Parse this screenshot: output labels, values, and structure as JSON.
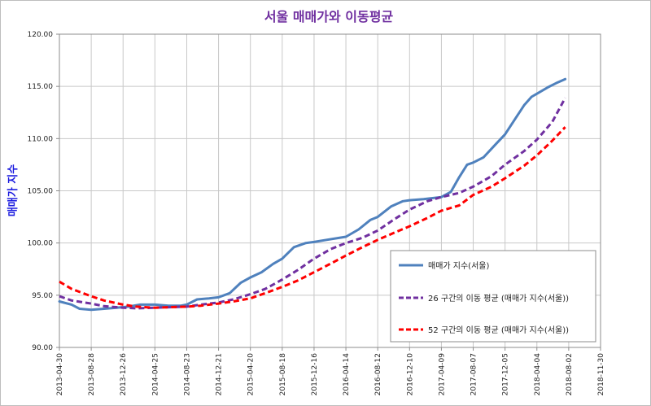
{
  "chart_data": {
    "type": "line",
    "title": "서울 매매가와 이동평균",
    "ylabel": "매매가 지수",
    "xlabel": "",
    "ylim": [
      90,
      120
    ],
    "yticks": [
      90,
      95,
      100,
      105,
      110,
      115,
      120
    ],
    "ytick_labels": [
      "90.00",
      "95.00",
      "100.00",
      "105.00",
      "110.00",
      "115.00",
      "120.00"
    ],
    "xlim": [
      "2013-04-30",
      "2018-11-30"
    ],
    "xtick_labels": [
      "2013-04-30",
      "2013-08-28",
      "2013-12-26",
      "2014-04-25",
      "2014-08-23",
      "2014-12-21",
      "2015-04-20",
      "2015-08-18",
      "2015-12-16",
      "2016-04-14",
      "2016-08-12",
      "2016-12-10",
      "2017-04-09",
      "2017-08-07",
      "2017-12-05",
      "2018-04-04",
      "2018-08-02",
      "2018-11-30"
    ],
    "grid": true,
    "legend_position": "right",
    "series": [
      {
        "name": "매매가 지수(서울)",
        "color": "#4f81bd",
        "style": "solid",
        "x": [
          "2013-04-30",
          "2013-06-15",
          "2013-07-15",
          "2013-08-28",
          "2013-10-15",
          "2013-12-01",
          "2014-01-15",
          "2014-03-01",
          "2014-04-25",
          "2014-06-15",
          "2014-08-01",
          "2014-08-23",
          "2014-10-01",
          "2014-11-15",
          "2014-12-21",
          "2015-02-01",
          "2015-03-15",
          "2015-04-20",
          "2015-06-01",
          "2015-07-15",
          "2015-08-18",
          "2015-10-01",
          "2015-11-15",
          "2015-12-16",
          "2016-02-01",
          "2016-04-14",
          "2016-06-01",
          "2016-07-15",
          "2016-08-12",
          "2016-10-01",
          "2016-11-15",
          "2016-12-10",
          "2017-02-01",
          "2017-04-09",
          "2017-05-15",
          "2017-06-15",
          "2017-07-15",
          "2017-08-07",
          "2017-09-15",
          "2017-11-01",
          "2017-12-05",
          "2018-01-15",
          "2018-02-15",
          "2018-03-15",
          "2018-04-04",
          "2018-05-15",
          "2018-06-15",
          "2018-07-20"
        ],
        "values": [
          94.4,
          94.1,
          93.7,
          93.6,
          93.7,
          93.8,
          93.9,
          94.1,
          94.1,
          94.0,
          94.0,
          94.1,
          94.6,
          94.7,
          94.8,
          95.2,
          96.2,
          96.7,
          97.2,
          98.0,
          98.5,
          99.6,
          100.0,
          100.1,
          100.3,
          100.6,
          101.3,
          102.2,
          102.5,
          103.5,
          104.0,
          104.1,
          104.2,
          104.4,
          104.9,
          106.3,
          107.5,
          107.7,
          108.2,
          109.5,
          110.4,
          112.0,
          113.2,
          114.0,
          114.3,
          114.9,
          115.3,
          115.7
        ]
      },
      {
        "name": "26 구간의 이동 평균 (매매가 지수(서울))",
        "color": "#7030a0",
        "style": "dashed",
        "x": [
          "2013-04-30",
          "2013-06-15",
          "2013-08-28",
          "2013-10-15",
          "2013-12-26",
          "2014-02-15",
          "2014-04-25",
          "2014-06-15",
          "2014-08-23",
          "2014-10-15",
          "2014-12-21",
          "2015-02-15",
          "2015-04-20",
          "2015-06-15",
          "2015-08-18",
          "2015-10-15",
          "2015-12-16",
          "2016-02-15",
          "2016-04-14",
          "2016-06-15",
          "2016-08-12",
          "2016-10-15",
          "2016-12-10",
          "2017-02-15",
          "2017-04-09",
          "2017-06-15",
          "2017-08-07",
          "2017-10-15",
          "2017-12-05",
          "2018-02-15",
          "2018-04-04",
          "2018-06-01",
          "2018-07-20"
        ],
        "values": [
          94.9,
          94.5,
          94.2,
          93.95,
          93.8,
          93.75,
          93.8,
          93.85,
          93.9,
          94.1,
          94.3,
          94.6,
          95.1,
          95.6,
          96.5,
          97.4,
          98.5,
          99.4,
          100.0,
          100.5,
          101.2,
          102.3,
          103.2,
          104.0,
          104.4,
          104.8,
          105.4,
          106.4,
          107.5,
          108.8,
          109.9,
          111.6,
          113.9
        ]
      },
      {
        "name": "52 구간의 이동 평균 (매매가 지수(서울))",
        "color": "#ff0000",
        "style": "dashed",
        "x": [
          "2013-04-30",
          "2013-06-15",
          "2013-08-28",
          "2013-10-15",
          "2013-12-26",
          "2014-02-15",
          "2014-04-25",
          "2014-06-15",
          "2014-08-23",
          "2014-10-15",
          "2014-12-21",
          "2015-02-15",
          "2015-04-20",
          "2015-06-15",
          "2015-08-18",
          "2015-10-15",
          "2015-12-16",
          "2016-02-15",
          "2016-04-14",
          "2016-06-15",
          "2016-08-12",
          "2016-10-15",
          "2016-12-10",
          "2017-02-15",
          "2017-04-09",
          "2017-06-15",
          "2017-08-07",
          "2017-10-15",
          "2017-12-05",
          "2018-02-15",
          "2018-04-04",
          "2018-06-01",
          "2018-07-20"
        ],
        "values": [
          96.3,
          95.6,
          94.9,
          94.5,
          94.1,
          93.9,
          93.8,
          93.85,
          93.9,
          94.0,
          94.2,
          94.4,
          94.7,
          95.2,
          95.8,
          96.4,
          97.2,
          98.0,
          98.8,
          99.6,
          100.3,
          101.0,
          101.6,
          102.4,
          103.1,
          103.6,
          104.6,
          105.4,
          106.2,
          107.4,
          108.4,
          109.8,
          111.1
        ]
      }
    ]
  }
}
